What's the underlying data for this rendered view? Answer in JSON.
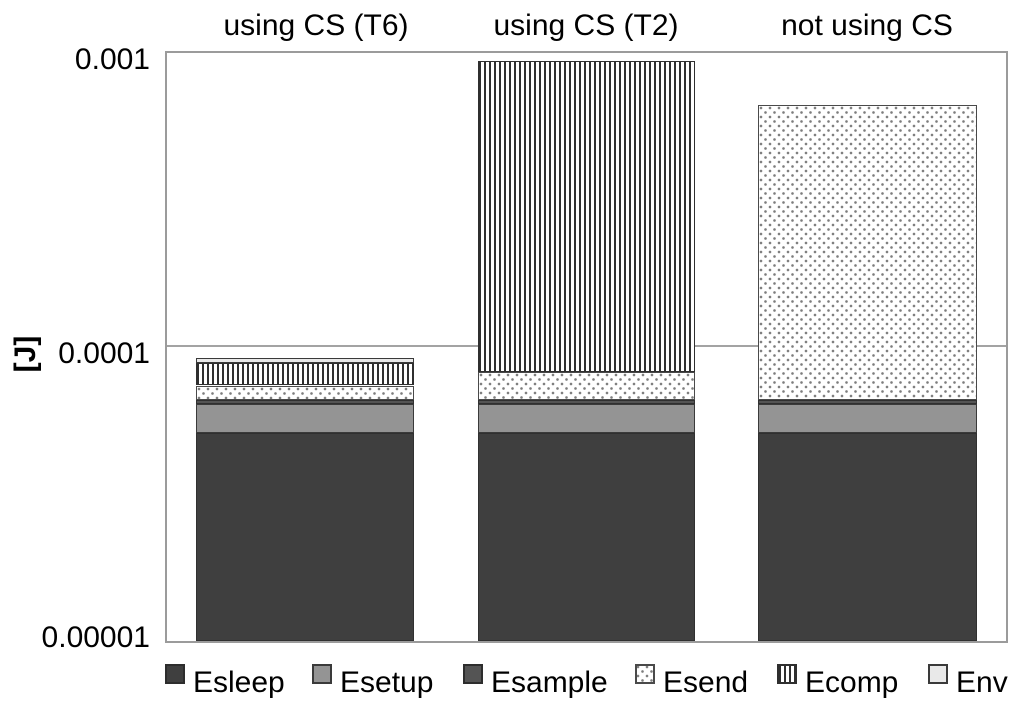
{
  "chart": {
    "column_titles": [
      "using CS (T6)",
      "using CS (T2)",
      "not using CS"
    ],
    "y_axis": {
      "label": "[J]",
      "ticks": [
        "0.001",
        "0.0001",
        "0.00001"
      ]
    }
  },
  "chart_data": {
    "type": "bar",
    "stacked": true,
    "y_scale": "log",
    "title": "",
    "xlabel": "",
    "ylabel": "[J]",
    "ylim": [
      1e-05,
      0.001
    ],
    "ytick_labels": [
      "0.001",
      "0.0001",
      "0.00001"
    ],
    "categories": [
      "using CS (T6)",
      "using CS (T2)",
      "not using CS"
    ],
    "series": [
      {
        "name": "Esleep",
        "style": "solid-dark",
        "values": [
          5.1e-05,
          5.1e-05,
          5.1e-05
        ]
      },
      {
        "name": "Esetup",
        "style": "solid-gray",
        "values": [
          1.3e-05,
          1.3e-05,
          1.3e-05
        ]
      },
      {
        "name": "Esample",
        "style": "solid-darkgray",
        "values": [
          2e-06,
          2e-06,
          2e-06
        ]
      },
      {
        "name": "Esend",
        "style": "dots",
        "values": [
          8e-06,
          1.6e-05,
          0.0006
        ]
      },
      {
        "name": "Ecomp",
        "style": "vertical-stripes",
        "values": [
          1.4e-05,
          0.00086,
          0
        ]
      },
      {
        "name": "Env",
        "style": "solid-light",
        "values": [
          4e-06,
          0,
          0
        ]
      }
    ],
    "totals_approx": [
      9.2e-05,
      0.00094,
      0.00067
    ],
    "gridlines": "horizontal-decades",
    "legend_position": "bottom"
  }
}
